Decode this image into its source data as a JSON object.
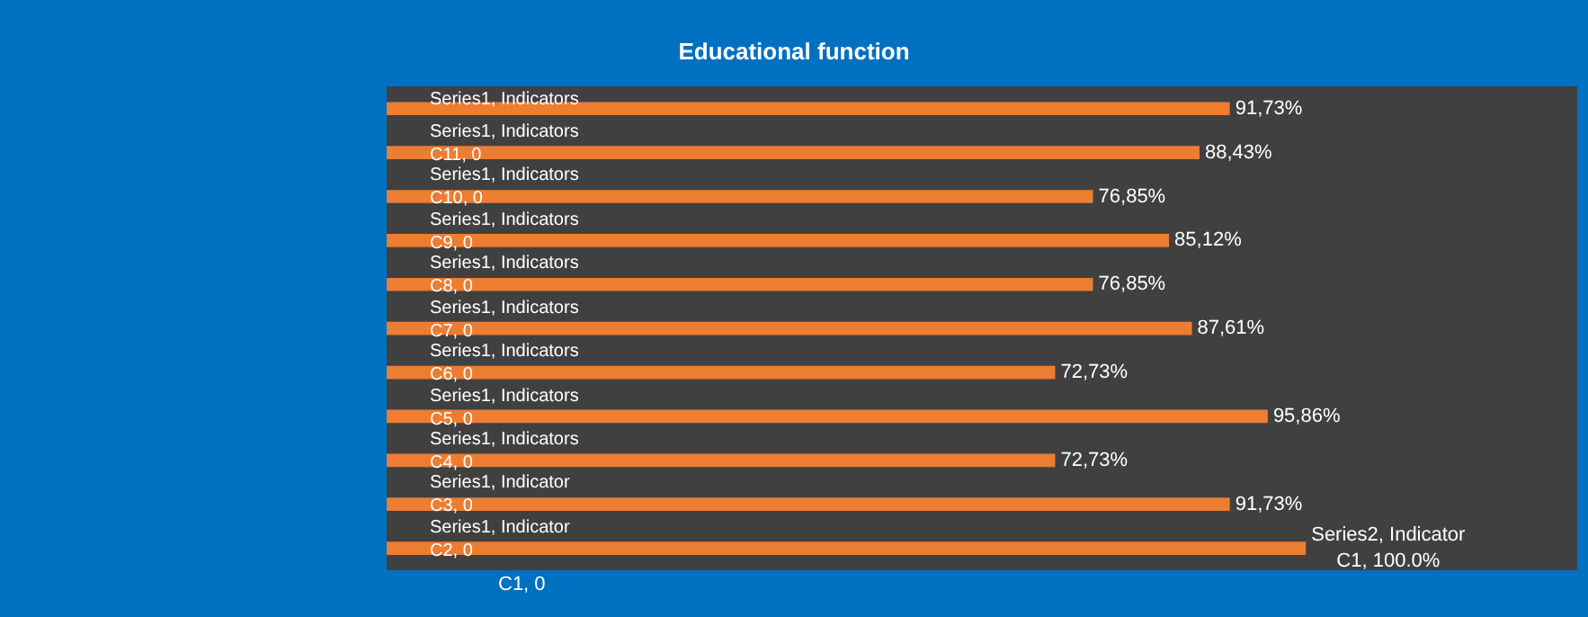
{
  "chart_data": {
    "type": "bar",
    "orientation": "horizontal",
    "title": "Educational function",
    "categories": [
      null,
      null,
      null,
      null,
      null,
      null,
      null,
      null,
      null,
      null,
      null
    ],
    "legend": false,
    "grid": false,
    "tick_labels": false,
    "series": [
      {
        "color": "#ed7d31",
        "values": [
          91.73,
          88.43,
          76.85,
          85.12,
          76.85,
          87.61,
          72.73,
          95.86,
          72.73,
          91.73,
          100
        ],
        "value_labels": [
          "91,73%",
          "88,43%",
          "76,85%",
          "85,12%",
          "76,85%",
          "87,61%",
          "72,73%",
          "95,86%",
          "72,73%",
          "91,73%",
          "Series2, Indicator\nC1, 100.0%"
        ]
      }
    ],
    "annotations": [
      "Series1, Indicators",
      "Series1, Indicators\nC11, 0",
      "Series1, Indicators\nC10, 0",
      "Series1, Indicators\nC9, 0",
      "Series1, Indicators\nC8, 0",
      "Series1, Indicators\nC7, 0",
      "Series1, Indicators\nC6, 0",
      "Series1, Indicators\nC5, 0",
      "Series1, Indicators\nC4, 0",
      "Series1, Indicator\nC3, 0",
      "Series1, Indicator\nC2, 0",
      "C1, 0"
    ]
  }
}
